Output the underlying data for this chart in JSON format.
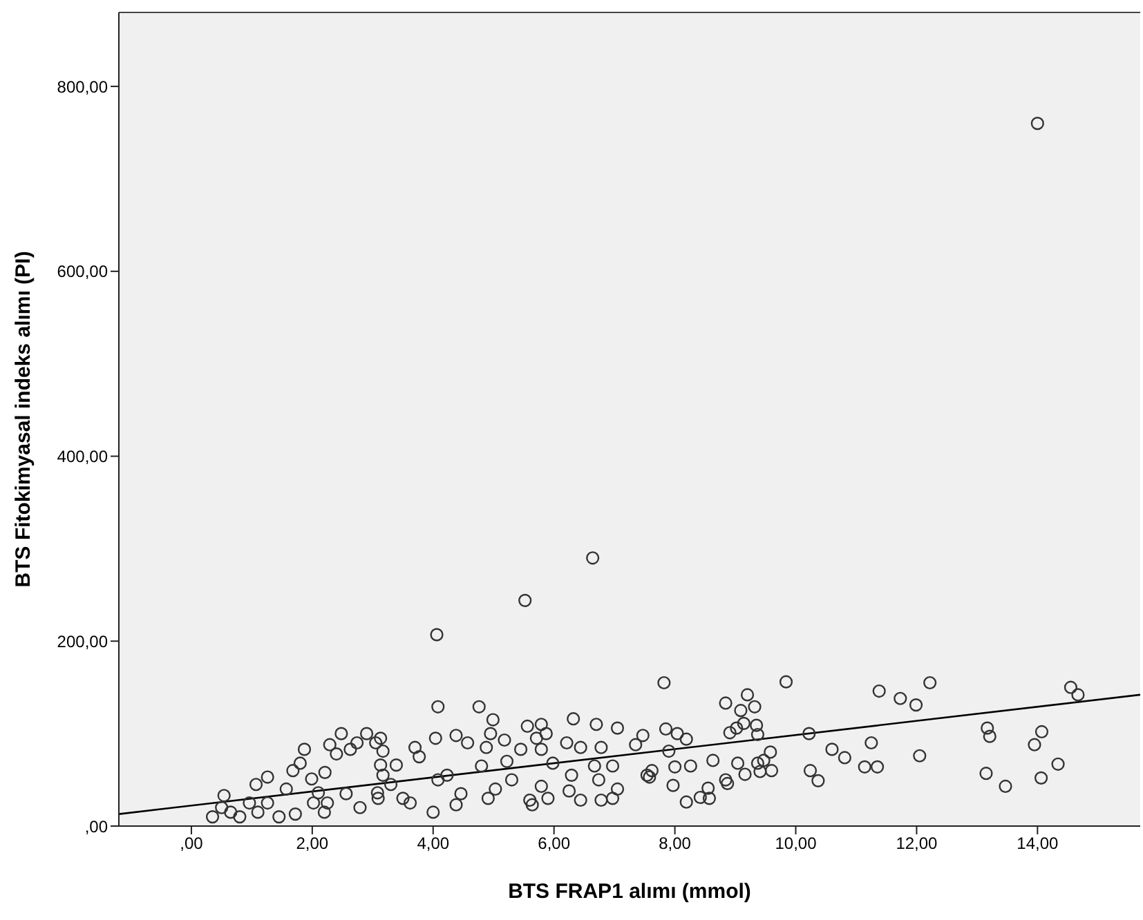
{
  "chart_data": {
    "type": "scatter",
    "xlabel": "BTS FRAP1 alımı (mmol)",
    "ylabel": "BTS Fitokimyasal indeks alımı (PI)",
    "xlim": [
      -1.2,
      15.7
    ],
    "ylim": [
      0,
      880
    ],
    "xticks": [
      {
        "value": 0,
        "label": ",00"
      },
      {
        "value": 2,
        "label": "2,00"
      },
      {
        "value": 4,
        "label": "4,00"
      },
      {
        "value": 6,
        "label": "6,00"
      },
      {
        "value": 8,
        "label": "8,00"
      },
      {
        "value": 10,
        "label": "10,00"
      },
      {
        "value": 12,
        "label": "12,00"
      },
      {
        "value": 14,
        "label": "14,00"
      }
    ],
    "yticks": [
      {
        "value": 0,
        "label": ",00"
      },
      {
        "value": 200,
        "label": "200,00"
      },
      {
        "value": 400,
        "label": "400,00"
      },
      {
        "value": 600,
        "label": "600,00"
      },
      {
        "value": 800,
        "label": "800,00"
      }
    ],
    "grid": false,
    "series": [
      {
        "marker": "circle",
        "color": "#333333",
        "x": [
          0.35,
          0.5,
          0.54,
          0.65,
          0.8,
          0.96,
          1.07,
          1.1,
          1.26,
          1.26,
          1.45,
          1.57,
          1.68,
          1.72,
          1.8,
          1.87,
          1.99,
          2.02,
          2.1,
          2.2,
          2.21,
          2.25,
          2.29,
          2.4,
          2.48,
          2.56,
          2.63,
          2.74,
          2.79,
          2.9,
          3.05,
          3.08,
          3.09,
          3.13,
          3.13,
          3.17,
          3.17,
          3.3,
          3.39,
          3.5,
          3.62,
          3.7,
          3.77,
          4.0,
          4.04,
          4.06,
          4.08,
          4.08,
          4.23,
          4.38,
          4.38,
          4.46,
          4.57,
          4.76,
          4.8,
          4.88,
          4.91,
          4.95,
          4.99,
          5.03,
          5.18,
          5.22,
          5.3,
          5.45,
          5.52,
          5.56,
          5.6,
          5.64,
          5.71,
          5.79,
          5.79,
          5.79,
          5.87,
          5.9,
          5.98,
          6.21,
          6.25,
          6.29,
          6.32,
          6.44,
          6.44,
          6.64,
          6.67,
          6.7,
          6.74,
          6.78,
          6.78,
          6.97,
          6.97,
          7.05,
          7.05,
          7.35,
          7.47,
          7.54,
          7.58,
          7.62,
          7.82,
          7.85,
          7.9,
          7.97,
          8.0,
          8.04,
          8.19,
          8.19,
          8.26,
          8.42,
          8.55,
          8.57,
          8.63,
          8.84,
          8.84,
          8.87,
          8.91,
          9.02,
          9.04,
          9.09,
          9.14,
          9.16,
          9.2,
          9.32,
          9.35,
          9.37,
          9.37,
          9.41,
          9.47,
          9.58,
          9.6,
          9.84,
          10.22,
          10.24,
          10.37,
          10.6,
          10.81,
          11.14,
          11.25,
          11.35,
          11.38,
          11.73,
          11.99,
          12.05,
          12.22,
          13.15,
          13.17,
          13.21,
          13.47,
          13.95,
          14.0,
          14.06,
          14.07,
          14.34,
          14.55,
          14.67
        ],
        "values": [
          10,
          20,
          33,
          15,
          10,
          25,
          45,
          15,
          53,
          25,
          10,
          40,
          60,
          13,
          68,
          83,
          51,
          25,
          36,
          15,
          58,
          25,
          88,
          78,
          100,
          35,
          83,
          90,
          20,
          100,
          90,
          36,
          30,
          95,
          66,
          81,
          55,
          45,
          66,
          30,
          25,
          85,
          75,
          15,
          95,
          207,
          129,
          50,
          55,
          98,
          23,
          35,
          90,
          129,
          65,
          85,
          30,
          100,
          115,
          40,
          93,
          70,
          50,
          83,
          244,
          108,
          28,
          23,
          95,
          110,
          83,
          43,
          100,
          30,
          68,
          90,
          38,
          55,
          116,
          85,
          28,
          290,
          65,
          110,
          50,
          85,
          28,
          65,
          30,
          106,
          40,
          88,
          98,
          55,
          53,
          60,
          155,
          105,
          81,
          44,
          64,
          100,
          94,
          26,
          65,
          31,
          41,
          30,
          71,
          133,
          50,
          46,
          101,
          106,
          68,
          125,
          111,
          56,
          142,
          129,
          109,
          99,
          68,
          59,
          71,
          80,
          60,
          156,
          100,
          60,
          49,
          83,
          74,
          64,
          90,
          64,
          146,
          138,
          131,
          76,
          155,
          57,
          106,
          97,
          43,
          88,
          760,
          52,
          102,
          67,
          150,
          142
        ]
      },
      {
        "type": "line",
        "marker": "none",
        "color": "#000000",
        "x": [
          -1.2,
          15.7
        ],
        "values": [
          13,
          142
        ]
      }
    ]
  }
}
